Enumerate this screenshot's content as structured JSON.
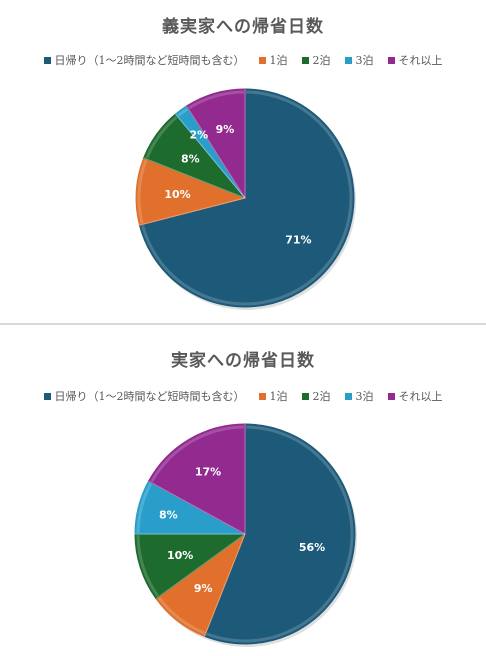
{
  "chart_data": [
    {
      "type": "pie",
      "title": "義実家への帰省日数",
      "categories": [
        "日帰り（1〜2時間など短時間も含む）",
        "1泊",
        "2泊",
        "3泊",
        "それ以上"
      ],
      "values": [
        71,
        10,
        8,
        2,
        9
      ],
      "labels": [
        "71%",
        "10%",
        "8%",
        "2%",
        "9%"
      ],
      "colors": [
        "#1d5a79",
        "#e0702b",
        "#1e6b2e",
        "#2a9ecb",
        "#922a8f"
      ],
      "legend_position": "top"
    },
    {
      "type": "pie",
      "title": "実家への帰省日数",
      "categories": [
        "日帰り（1〜2時間など短時間も含む）",
        "1泊",
        "2泊",
        "3泊",
        "それ以上"
      ],
      "values": [
        56,
        9,
        10,
        8,
        17
      ],
      "labels": [
        "56%",
        "9%",
        "10%",
        "8%",
        "17%"
      ],
      "colors": [
        "#1d5a79",
        "#e0702b",
        "#1e6b2e",
        "#2a9ecb",
        "#922a8f"
      ],
      "legend_position": "top"
    }
  ]
}
